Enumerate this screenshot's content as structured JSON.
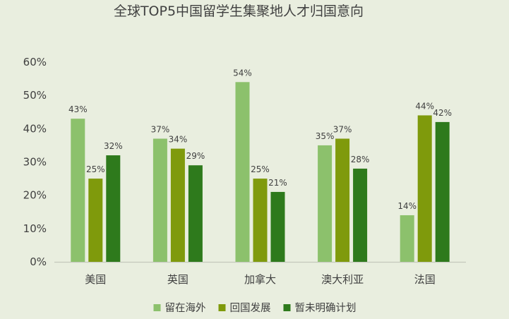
{
  "chart_data": {
    "type": "bar",
    "title": "全球TOP5中国留学生集聚地人才归国意向",
    "categories": [
      "美国",
      "英国",
      "加拿大",
      "澳大利亚",
      "法国"
    ],
    "series": [
      {
        "name": "留在海外",
        "color": "#8cc16c",
        "values": [
          43,
          37,
          54,
          35,
          14
        ]
      },
      {
        "name": "回国发展",
        "color": "#7f9a0c",
        "values": [
          25,
          34,
          25,
          37,
          44
        ]
      },
      {
        "name": "暂未明确计划",
        "color": "#2e7a1c",
        "values": [
          32,
          29,
          21,
          28,
          42
        ]
      }
    ],
    "ylim": [
      0,
      60
    ],
    "yticks": [
      "0%",
      "10%",
      "20%",
      "30%",
      "40%",
      "50%",
      "60%"
    ],
    "value_suffix": "%",
    "grid": false,
    "legend_position": "bottom"
  }
}
